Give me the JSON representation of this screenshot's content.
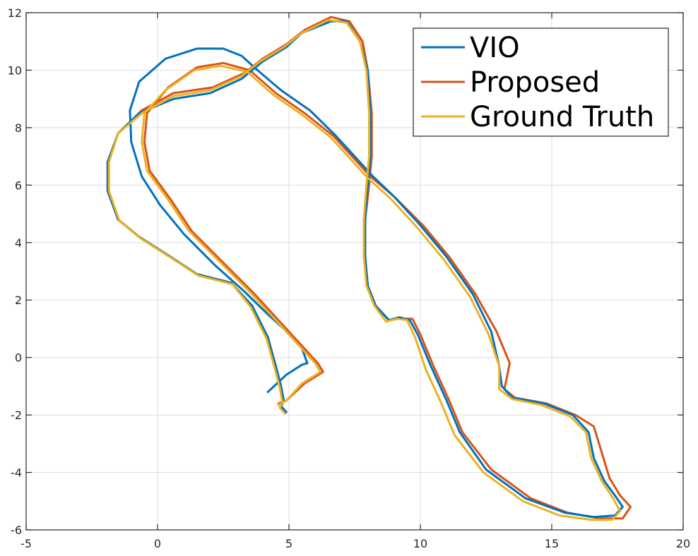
{
  "chart_data": {
    "type": "line",
    "title": "",
    "xlabel": "",
    "ylabel": "",
    "xlim": [
      -5,
      20
    ],
    "ylim": [
      -6,
      12
    ],
    "xticks": [
      -5,
      0,
      5,
      10,
      15,
      20
    ],
    "yticks": [
      -6,
      -4,
      -2,
      0,
      2,
      4,
      6,
      8,
      10,
      12
    ],
    "xtick_labels": [
      "-5",
      "0",
      "5",
      "10",
      "15",
      "20"
    ],
    "ytick_labels": [
      "-6",
      "-4",
      "-2",
      "0",
      "2",
      "4",
      "6",
      "8",
      "10",
      "12"
    ],
    "grid": true,
    "legend_position": "top-right",
    "series": [
      {
        "name": "VIO",
        "color": "#0072BD",
        "points": [
          [
            4.2,
            -1.2
          ],
          [
            4.9,
            -0.6
          ],
          [
            5.5,
            -0.25
          ],
          [
            5.7,
            -0.2
          ],
          [
            5.5,
            0.3
          ],
          [
            4.8,
            1.0
          ],
          [
            4.2,
            1.5
          ],
          [
            3.3,
            2.3
          ],
          [
            2.2,
            3.2
          ],
          [
            1.0,
            4.3
          ],
          [
            0.1,
            5.3
          ],
          [
            -0.6,
            6.3
          ],
          [
            -1.0,
            7.5
          ],
          [
            -1.05,
            8.6
          ],
          [
            -0.7,
            9.6
          ],
          [
            0.3,
            10.4
          ],
          [
            1.5,
            10.75
          ],
          [
            2.5,
            10.75
          ],
          [
            3.2,
            10.5
          ],
          [
            3.8,
            10.0
          ],
          [
            4.7,
            9.3
          ],
          [
            5.8,
            8.6
          ],
          [
            6.8,
            7.7
          ],
          [
            7.6,
            6.9
          ],
          [
            8.2,
            6.3
          ],
          [
            9.0,
            5.6
          ],
          [
            10.0,
            4.6
          ],
          [
            11.0,
            3.5
          ],
          [
            12.0,
            2.2
          ],
          [
            12.7,
            0.9
          ],
          [
            13.0,
            -0.3
          ],
          [
            13.1,
            -1.0
          ],
          [
            13.5,
            -1.4
          ],
          [
            14.7,
            -1.6
          ],
          [
            15.8,
            -2.0
          ],
          [
            16.4,
            -2.6
          ],
          [
            16.6,
            -3.5
          ],
          [
            17.0,
            -4.3
          ],
          [
            17.4,
            -4.8
          ],
          [
            17.7,
            -5.2
          ],
          [
            17.4,
            -5.5
          ],
          [
            16.6,
            -5.55
          ],
          [
            15.5,
            -5.4
          ],
          [
            14.0,
            -4.9
          ],
          [
            12.5,
            -3.9
          ],
          [
            11.5,
            -2.6
          ],
          [
            11.0,
            -1.5
          ],
          [
            10.4,
            -0.3
          ],
          [
            9.9,
            0.8
          ],
          [
            9.6,
            1.3
          ],
          [
            9.2,
            1.4
          ],
          [
            8.8,
            1.3
          ],
          [
            8.3,
            1.8
          ],
          [
            8.0,
            2.5
          ],
          [
            7.9,
            3.5
          ],
          [
            7.9,
            4.8
          ],
          [
            8.0,
            6.0
          ],
          [
            8.1,
            7.0
          ],
          [
            8.1,
            8.5
          ],
          [
            8.0,
            10.0
          ],
          [
            7.7,
            11.0
          ],
          [
            7.2,
            11.7
          ],
          [
            6.6,
            11.7
          ],
          [
            5.5,
            11.3
          ],
          [
            4.9,
            10.8
          ],
          [
            4.0,
            10.3
          ],
          [
            3.2,
            9.7
          ],
          [
            2.0,
            9.2
          ],
          [
            0.6,
            9.0
          ],
          [
            -0.7,
            8.5
          ],
          [
            -1.5,
            7.8
          ],
          [
            -1.9,
            6.8
          ],
          [
            -1.9,
            5.8
          ],
          [
            -1.5,
            4.8
          ],
          [
            -0.7,
            4.2
          ],
          [
            0.5,
            3.5
          ],
          [
            1.5,
            2.9
          ],
          [
            2.8,
            2.6
          ],
          [
            3.6,
            1.8
          ],
          [
            4.2,
            0.7
          ],
          [
            4.5,
            -0.3
          ],
          [
            4.7,
            -1.0
          ],
          [
            4.8,
            -1.5
          ],
          [
            4.7,
            -1.7
          ],
          [
            4.9,
            -1.9
          ]
        ]
      },
      {
        "name": "Proposed",
        "color": "#D95319",
        "points": [
          [
            4.6,
            -1.6
          ],
          [
            4.9,
            -1.5
          ],
          [
            5.6,
            -0.9
          ],
          [
            6.3,
            -0.5
          ],
          [
            6.1,
            -0.2
          ],
          [
            5.5,
            0.4
          ],
          [
            4.6,
            1.3
          ],
          [
            3.7,
            2.2
          ],
          [
            2.5,
            3.3
          ],
          [
            1.3,
            4.4
          ],
          [
            0.5,
            5.5
          ],
          [
            -0.3,
            6.5
          ],
          [
            -0.5,
            7.5
          ],
          [
            -0.4,
            8.5
          ],
          [
            0.4,
            9.4
          ],
          [
            1.5,
            10.1
          ],
          [
            2.5,
            10.25
          ],
          [
            3.5,
            10.0
          ],
          [
            4.5,
            9.2
          ],
          [
            5.6,
            8.5
          ],
          [
            6.7,
            7.7
          ],
          [
            7.5,
            6.9
          ],
          [
            8.1,
            6.3
          ],
          [
            9.0,
            5.6
          ],
          [
            10.1,
            4.6
          ],
          [
            11.1,
            3.5
          ],
          [
            12.1,
            2.2
          ],
          [
            12.9,
            0.9
          ],
          [
            13.4,
            -0.2
          ],
          [
            13.2,
            -1.1
          ],
          [
            13.6,
            -1.4
          ],
          [
            14.8,
            -1.6
          ],
          [
            15.9,
            -2.0
          ],
          [
            16.6,
            -2.4
          ],
          [
            16.9,
            -3.3
          ],
          [
            17.2,
            -4.2
          ],
          [
            17.6,
            -4.8
          ],
          [
            18.0,
            -5.2
          ],
          [
            17.7,
            -5.6
          ],
          [
            16.8,
            -5.6
          ],
          [
            15.6,
            -5.4
          ],
          [
            14.2,
            -4.9
          ],
          [
            12.7,
            -3.9
          ],
          [
            11.6,
            -2.6
          ],
          [
            11.1,
            -1.5
          ],
          [
            10.5,
            -0.3
          ],
          [
            10.0,
            0.8
          ],
          [
            9.7,
            1.35
          ],
          [
            9.2,
            1.35
          ],
          [
            8.8,
            1.3
          ],
          [
            8.3,
            1.8
          ],
          [
            8.0,
            2.5
          ],
          [
            7.9,
            3.5
          ],
          [
            7.9,
            4.8
          ],
          [
            8.05,
            6.0
          ],
          [
            8.15,
            7.0
          ],
          [
            8.15,
            8.5
          ],
          [
            8.0,
            10.0
          ],
          [
            7.8,
            11.0
          ],
          [
            7.3,
            11.7
          ],
          [
            6.6,
            11.85
          ],
          [
            5.6,
            11.4
          ],
          [
            4.9,
            10.9
          ],
          [
            4.0,
            10.4
          ],
          [
            3.3,
            9.9
          ],
          [
            2.1,
            9.4
          ],
          [
            0.6,
            9.2
          ],
          [
            -0.6,
            8.6
          ],
          [
            -1.5,
            7.8
          ],
          [
            -1.9,
            6.8
          ],
          [
            -1.9,
            5.8
          ],
          [
            -1.5,
            4.8
          ],
          [
            -0.7,
            4.2
          ],
          [
            0.5,
            3.5
          ],
          [
            1.5,
            2.9
          ],
          [
            2.8,
            2.6
          ],
          [
            3.6,
            1.8
          ],
          [
            4.2,
            0.7
          ],
          [
            4.5,
            -0.3
          ],
          [
            4.7,
            -1.0
          ],
          [
            4.8,
            -1.5
          ],
          [
            4.7,
            -1.7
          ],
          [
            4.9,
            -1.9
          ]
        ]
      },
      {
        "name": "Ground Truth",
        "color": "#EDB120",
        "points": [
          [
            4.6,
            -1.65
          ],
          [
            4.9,
            -1.5
          ],
          [
            5.5,
            -0.9
          ],
          [
            6.2,
            -0.5
          ],
          [
            6.0,
            -0.2
          ],
          [
            5.4,
            0.4
          ],
          [
            4.5,
            1.3
          ],
          [
            3.6,
            2.2
          ],
          [
            2.4,
            3.3
          ],
          [
            1.2,
            4.4
          ],
          [
            0.4,
            5.5
          ],
          [
            -0.4,
            6.5
          ],
          [
            -0.6,
            7.5
          ],
          [
            -0.5,
            8.5
          ],
          [
            0.3,
            9.3
          ],
          [
            1.4,
            10.0
          ],
          [
            2.4,
            10.15
          ],
          [
            3.4,
            9.95
          ],
          [
            4.4,
            9.15
          ],
          [
            5.5,
            8.45
          ],
          [
            6.6,
            7.65
          ],
          [
            7.4,
            6.85
          ],
          [
            8.0,
            6.25
          ],
          [
            8.9,
            5.5
          ],
          [
            9.9,
            4.5
          ],
          [
            10.9,
            3.4
          ],
          [
            11.9,
            2.1
          ],
          [
            12.6,
            0.8
          ],
          [
            13.0,
            -0.3
          ],
          [
            13.0,
            -1.1
          ],
          [
            13.5,
            -1.45
          ],
          [
            14.6,
            -1.65
          ],
          [
            15.7,
            -2.05
          ],
          [
            16.3,
            -2.6
          ],
          [
            16.5,
            -3.5
          ],
          [
            16.9,
            -4.3
          ],
          [
            17.3,
            -4.85
          ],
          [
            17.6,
            -5.35
          ],
          [
            17.3,
            -5.65
          ],
          [
            16.5,
            -5.65
          ],
          [
            15.3,
            -5.5
          ],
          [
            13.9,
            -5.0
          ],
          [
            12.4,
            -4.0
          ],
          [
            11.3,
            -2.7
          ],
          [
            10.8,
            -1.6
          ],
          [
            10.2,
            -0.4
          ],
          [
            9.8,
            0.7
          ],
          [
            9.5,
            1.3
          ],
          [
            9.1,
            1.35
          ],
          [
            8.7,
            1.25
          ],
          [
            8.25,
            1.8
          ],
          [
            7.95,
            2.5
          ],
          [
            7.85,
            3.5
          ],
          [
            7.85,
            4.8
          ],
          [
            7.95,
            6.0
          ],
          [
            8.05,
            7.0
          ],
          [
            8.05,
            8.5
          ],
          [
            7.95,
            10.0
          ],
          [
            7.7,
            11.0
          ],
          [
            7.2,
            11.65
          ],
          [
            6.5,
            11.75
          ],
          [
            5.5,
            11.3
          ],
          [
            4.8,
            10.8
          ],
          [
            3.9,
            10.3
          ],
          [
            3.2,
            9.8
          ],
          [
            2.0,
            9.3
          ],
          [
            0.6,
            9.1
          ],
          [
            -0.6,
            8.5
          ],
          [
            -1.5,
            7.8
          ],
          [
            -1.85,
            6.8
          ],
          [
            -1.85,
            5.8
          ],
          [
            -1.45,
            4.75
          ],
          [
            -0.65,
            4.15
          ],
          [
            0.55,
            3.45
          ],
          [
            1.55,
            2.85
          ],
          [
            2.85,
            2.55
          ],
          [
            3.55,
            1.75
          ],
          [
            4.15,
            0.65
          ],
          [
            4.45,
            -0.35
          ],
          [
            4.65,
            -1.05
          ],
          [
            4.75,
            -1.55
          ],
          [
            4.65,
            -1.75
          ],
          [
            4.85,
            -1.95
          ]
        ]
      }
    ]
  }
}
